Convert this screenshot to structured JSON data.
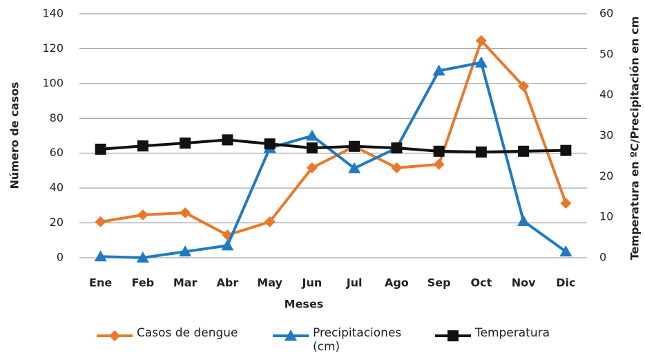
{
  "chart_data": {
    "type": "line",
    "categories": [
      "Ene",
      "Feb",
      "Mar",
      "Abr",
      "May",
      "Jun",
      "Jul",
      "Ago",
      "Sep",
      "Oct",
      "Nov",
      "Dic"
    ],
    "x_label": "Meses",
    "y_label": "Número de casos",
    "y2_label": "Temperatura en ºC/Precipitación en cm",
    "ylim": [
      0,
      140
    ],
    "yticks": [
      0,
      20,
      40,
      60,
      80,
      100,
      120,
      140
    ],
    "y2lim": [
      0,
      60
    ],
    "y2ticks": [
      0,
      10,
      20,
      30,
      40,
      50,
      60
    ],
    "grid": true,
    "series": [
      {
        "name": "Casos de dengue",
        "color": "#e9782b",
        "marker": "diamond",
        "values": [
          20.6,
          24.6,
          25.8,
          13,
          20.6,
          51.6,
          63.9,
          51.6,
          53.6,
          124.6,
          98.4,
          31.3
        ]
      },
      {
        "name": "Precipitaciones (cm)",
        "color": "#1f7ac1",
        "marker": "triangle",
        "axis": "y2",
        "values": [
          0.3,
          0,
          1.5,
          3,
          27,
          30,
          22,
          27,
          46,
          48,
          9,
          1.5
        ]
      },
      {
        "name": "Temperatura",
        "color": "#111111",
        "marker": "square",
        "axis": "y2",
        "values": [
          26.7,
          27.5,
          28.2,
          29,
          28,
          27,
          27.4,
          27,
          26.2,
          26,
          26.2,
          26.4
        ]
      }
    ]
  }
}
